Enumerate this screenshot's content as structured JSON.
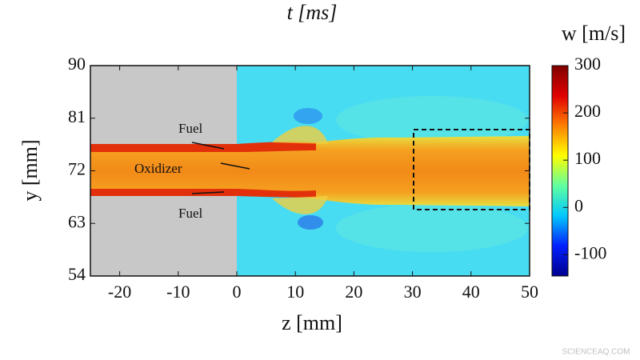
{
  "chart_data": {
    "type": "field",
    "title": "t  [ms]",
    "x_label": "z [mm]",
    "y_label": "y [mm]",
    "xlim": [
      -25,
      50
    ],
    "xticks": [
      -20,
      -10,
      0,
      10,
      20,
      30,
      40,
      50
    ],
    "ylim": [
      54,
      90
    ],
    "yticks": [
      54,
      63,
      72,
      81,
      90
    ],
    "annotations": [
      "Fuel",
      "Oxidizer",
      "Fuel"
    ],
    "colorbar": {
      "label": "w [m/s]",
      "lim": [
        -145,
        300
      ],
      "ticks": [
        -100,
        0,
        100,
        200,
        300
      ],
      "colors": [
        "#00008f",
        "#0020ff",
        "#00c8ff",
        "#60ffa0",
        "#ffff00",
        "#ff8000",
        "#e00000",
        "#800000"
      ]
    },
    "watermark": "SCIENCEAQ.COM"
  }
}
